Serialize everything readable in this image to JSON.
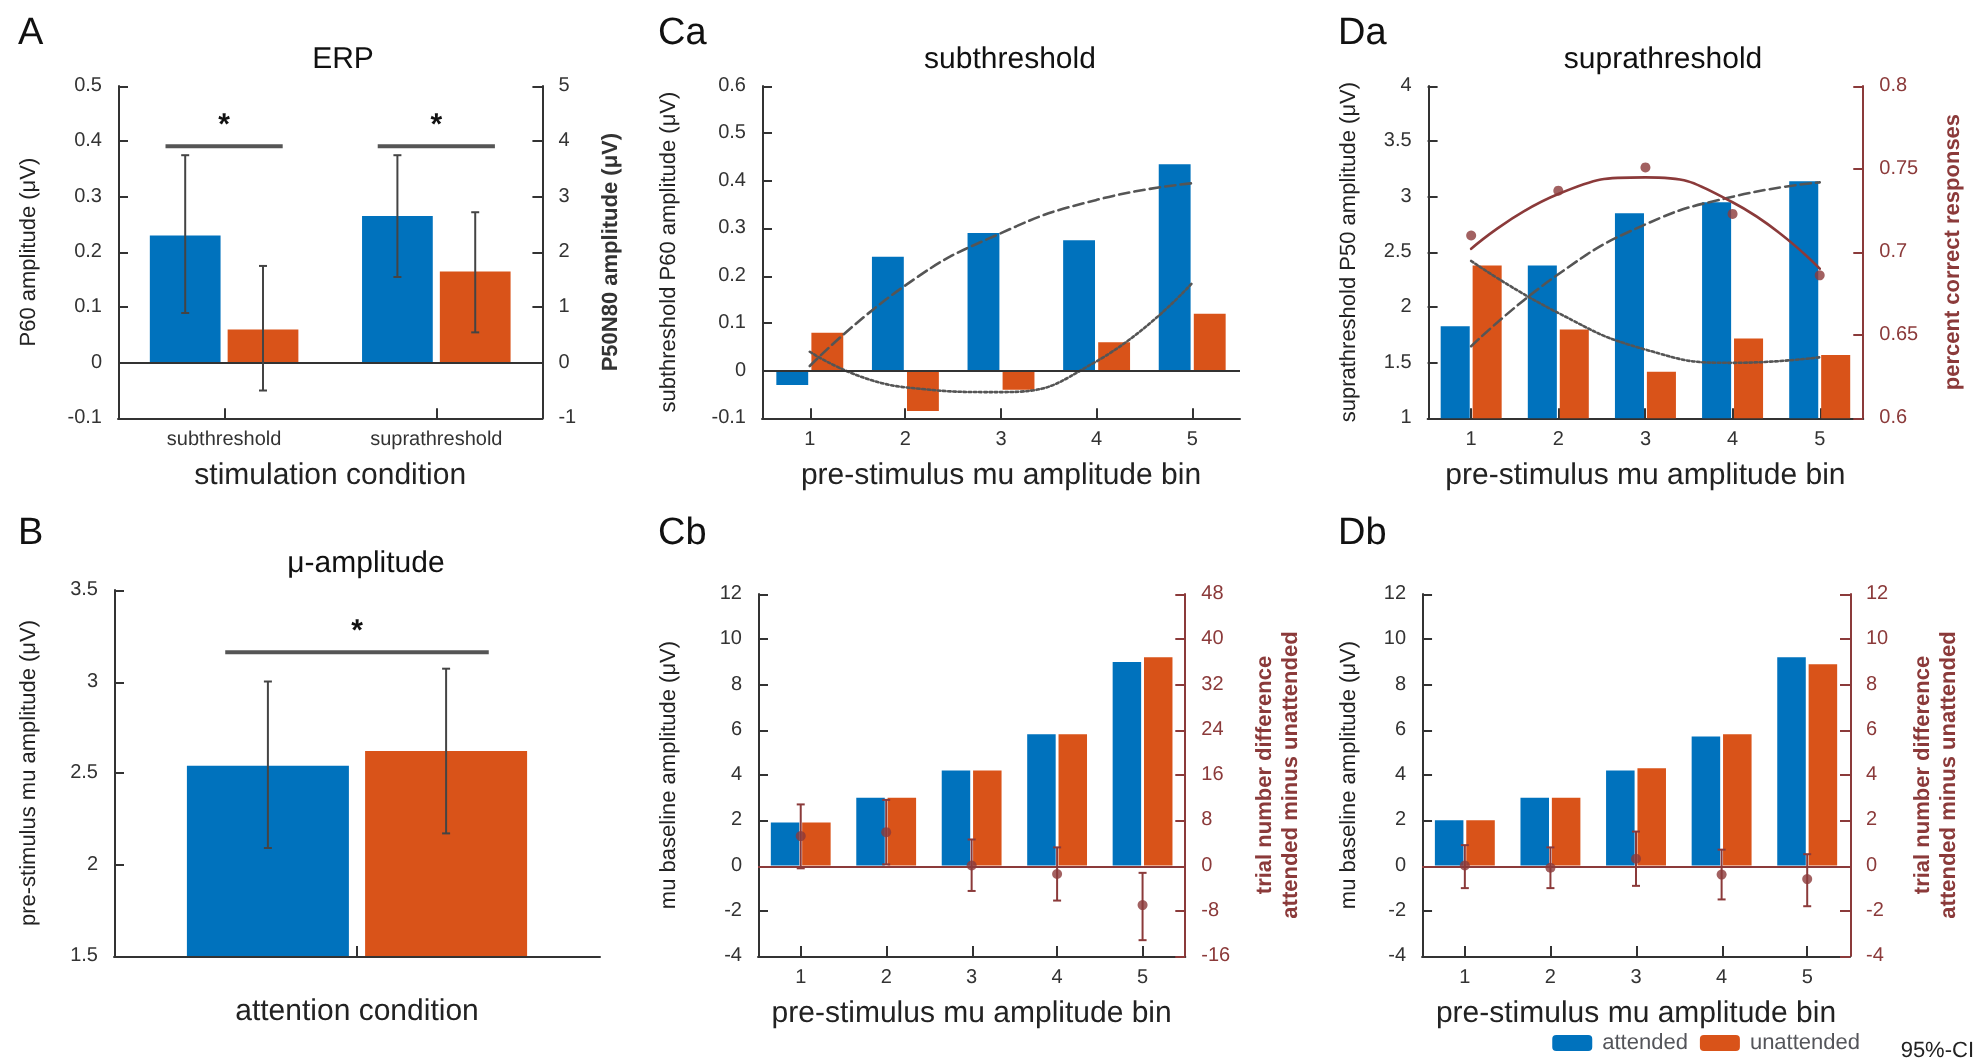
{
  "chart_data": [
    {
      "type": "bar",
      "title": "A",
      "subtitle": "ERP",
      "xlabel": "stimulation condition",
      "ylabel": "P60 amplitude (μV)",
      "y2label": "P50N80 amplitude (μV)",
      "categories": [
        "subthreshold",
        "suprathreshold"
      ],
      "ylim": [
        -0.1,
        0.5
      ],
      "yticks": [
        -0.1,
        0,
        0.1,
        0.2,
        0.3,
        0.4,
        0.5
      ],
      "y2lim": [
        -1,
        5
      ],
      "y2ticks": [
        -1,
        0,
        1,
        2,
        3,
        4,
        5
      ],
      "ref_lines": [
        {
          "axis": "y",
          "value": 0,
          "color": "#333333"
        }
      ],
      "annotations": [
        "*",
        "*"
      ],
      "series": [
        {
          "color": "#0072bd",
          "values": [
            0.23,
            null
          ],
          "errors": [
            [
              0.09,
              0.375
            ],
            null
          ]
        },
        {
          "color": "#d95319",
          "values": [
            0.06,
            null
          ],
          "errors": [
            [
              -0.05,
              0.175
            ],
            null
          ]
        },
        {
          "color": "#0072bd",
          "axis": "y2",
          "values": [
            null,
            2.65
          ],
          "errors": [
            null,
            [
              1.55,
              3.75
            ]
          ]
        },
        {
          "color": "#d95319",
          "axis": "y2",
          "values": [
            null,
            1.65
          ],
          "errors": [
            null,
            [
              0.55,
              2.72
            ]
          ]
        }
      ]
    },
    {
      "type": "bar",
      "title": "Ca",
      "subtitle": "subthreshold",
      "xlabel": "pre-stimulus mu amplitude bin",
      "ylabel": "subthreshold P60 amplitude (μV)",
      "categories": [
        "1",
        "2",
        "3",
        "4",
        "5"
      ],
      "ylim": [
        -0.1,
        0.6
      ],
      "yticks": [
        -0.1,
        0,
        0.1,
        0.2,
        0.3,
        0.4,
        0.5,
        0.6
      ],
      "ref_lines": [
        {
          "axis": "y",
          "value": 0,
          "color": "#333333"
        }
      ],
      "series": [
        {
          "color": "#0072bd",
          "values": [
            -0.03,
            0.24,
            0.29,
            0.275,
            0.435
          ]
        },
        {
          "color": "#d95319",
          "values": [
            0.08,
            -0.085,
            -0.04,
            0.06,
            0.12
          ]
        },
        {
          "type": "line",
          "color": "#555555",
          "line_style": "dashed",
          "marker": "none",
          "values": [
            0.01,
            0.18,
            0.29,
            0.36,
            0.395
          ]
        },
        {
          "type": "line",
          "color": "#555555",
          "line_style": "dotted",
          "marker": "none",
          "values": [
            0.04,
            -0.035,
            -0.045,
            0.02,
            0.185
          ]
        }
      ]
    },
    {
      "type": "bar",
      "title": "Da",
      "subtitle": "suprathreshold",
      "xlabel": "pre-stimulus mu amplitude bin",
      "ylabel": "suprathreshold P50 amplitude (μV)",
      "y2label": "percent correct responses",
      "categories": [
        "1",
        "2",
        "3",
        "4",
        "5"
      ],
      "ylim": [
        1,
        4
      ],
      "yticks": [
        1,
        1.5,
        2,
        2.5,
        3,
        3.5,
        4
      ],
      "y2lim": [
        0.6,
        0.8
      ],
      "y2ticks": [
        0.6,
        0.65,
        0.7,
        0.75,
        0.8
      ],
      "series": [
        {
          "color": "#0072bd",
          "values": [
            1.83,
            2.38,
            2.85,
            2.95,
            3.14
          ]
        },
        {
          "color": "#d95319",
          "values": [
            2.38,
            1.8,
            1.42,
            1.72,
            1.57
          ]
        },
        {
          "type": "line",
          "color": "#555555",
          "line_style": "dashed",
          "marker": "none",
          "values": [
            1.65,
            2.3,
            2.75,
            3.0,
            3.13
          ]
        },
        {
          "type": "line",
          "color": "#555555",
          "line_style": "dotted",
          "marker": "none",
          "values": [
            2.42,
            1.95,
            1.62,
            1.5,
            1.55
          ]
        },
        {
          "type": "scatter",
          "axis": "y2",
          "color": "#8b3a3a",
          "marker": "circle",
          "values": [
            0.71,
            0.737,
            0.751,
            0.723,
            0.686
          ]
        },
        {
          "type": "line",
          "axis": "y2",
          "color": "#8b3a3a",
          "line_style": "solid",
          "marker": "none",
          "values": [
            0.702,
            0.735,
            0.745,
            0.73,
            0.69
          ]
        }
      ]
    },
    {
      "type": "bar",
      "title": "B",
      "subtitle": "μ-amplitude",
      "xlabel": "attention condition",
      "ylabel": "pre-stimulus mu amplitude (μV)",
      "categories": [
        null
      ],
      "ylim": [
        1.5,
        3.5
      ],
      "yticks": [
        1.5,
        2,
        2.5,
        3,
        3.5
      ],
      "annotations": [
        "*"
      ],
      "series": [
        {
          "color": "#0072bd",
          "values": [
            2.54
          ],
          "errors": [
            [
              2.09,
              3.0
            ]
          ]
        },
        {
          "color": "#d95319",
          "values": [
            2.62
          ],
          "errors": [
            [
              2.17,
              3.07
            ]
          ]
        }
      ]
    },
    {
      "type": "bar",
      "title": "Cb",
      "xlabel": "pre-stimulus mu amplitude bin",
      "ylabel": "mu baseline amplitude (μV)",
      "y2label": "trial number difference\nattended minus unattended",
      "categories": [
        "1",
        "2",
        "3",
        "4",
        "5"
      ],
      "ylim": [
        -4,
        12
      ],
      "yticks": [
        -4,
        -2,
        0,
        2,
        4,
        6,
        8,
        10,
        12
      ],
      "y2lim": [
        -16,
        48
      ],
      "y2ticks": [
        -16,
        -8,
        0,
        8,
        16,
        24,
        32,
        40,
        48
      ],
      "ref_lines": [
        {
          "axis": "y",
          "value": 0,
          "color": "#8b3a3a"
        }
      ],
      "series": [
        {
          "color": "#0072bd",
          "values": [
            1.9,
            3.0,
            4.2,
            5.8,
            9.0
          ]
        },
        {
          "color": "#d95319",
          "values": [
            1.9,
            3.0,
            4.2,
            5.8,
            9.2
          ]
        },
        {
          "type": "scatter",
          "axis": "y2",
          "color": "#8b3a3a",
          "marker": "circle",
          "values": [
            5.2,
            5.9,
            0,
            -1.5,
            -7
          ],
          "errors": [
            [
              -0.5,
              10.8
            ],
            [
              0.2,
              11.6
            ],
            [
              -4.5,
              4.6
            ],
            [
              -6.2,
              3.2
            ],
            [
              -13.2,
              -1.3
            ]
          ]
        }
      ]
    },
    {
      "type": "bar",
      "title": "Db",
      "xlabel": "pre-stimulus mu amplitude bin",
      "ylabel": "mu baseline amplitude (μV)",
      "y2label": "trial number difference\nattended minus unattended",
      "categories": [
        "1",
        "2",
        "3",
        "4",
        "5"
      ],
      "ylim": [
        -4,
        12
      ],
      "yticks": [
        -4,
        -2,
        0,
        2,
        4,
        6,
        8,
        10,
        12
      ],
      "y2lim": [
        -4,
        12
      ],
      "y2ticks": [
        -4,
        -2,
        0,
        2,
        4,
        6,
        8,
        10,
        12
      ],
      "ref_lines": [
        {
          "axis": "y",
          "value": 0,
          "color": "#8b3a3a"
        }
      ],
      "legend": "bottom right",
      "annotations": [
        "95%-CI"
      ],
      "series": [
        {
          "name": "attended",
          "color": "#0072bd",
          "values": [
            2.0,
            3.0,
            4.2,
            5.7,
            9.2
          ]
        },
        {
          "name": "unattended",
          "color": "#d95319",
          "values": [
            2.0,
            3.0,
            4.3,
            5.8,
            8.9
          ]
        },
        {
          "type": "scatter",
          "axis": "y2",
          "color": "#8b3a3a",
          "marker": "circle",
          "values": [
            0,
            -0.1,
            0.3,
            -0.4,
            -0.6
          ],
          "errors": [
            [
              -1,
              0.9
            ],
            [
              -1,
              0.8
            ],
            [
              -0.9,
              1.5
            ],
            [
              -1.5,
              0.7
            ],
            [
              -1.8,
              0.5
            ]
          ]
        }
      ]
    }
  ]
}
